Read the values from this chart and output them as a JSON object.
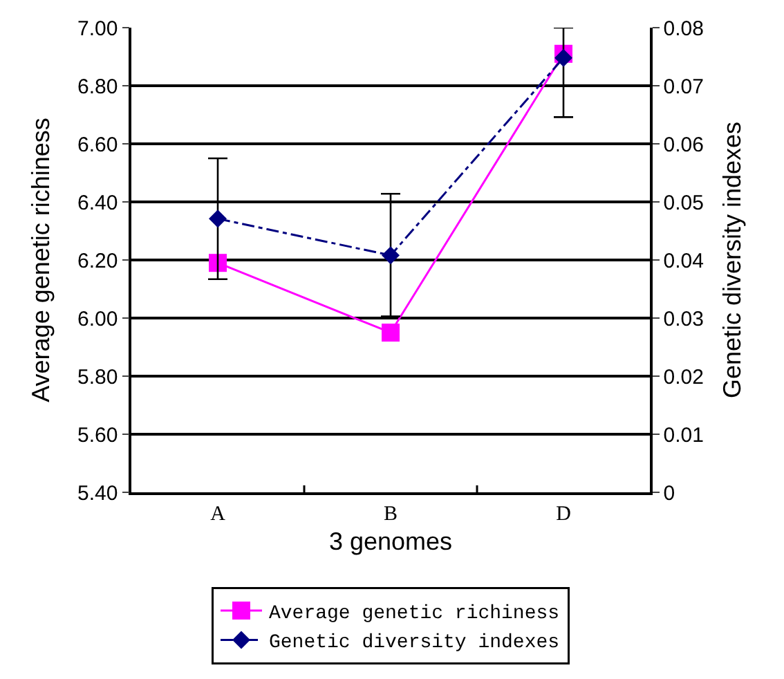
{
  "chart_data": {
    "type": "line",
    "xlabel": "3 genomes",
    "ylabel": "Average genetic richiness",
    "y2label": "Genetic diversity indexes",
    "categories": [
      "A",
      "B",
      "D"
    ],
    "series": [
      {
        "name": "Average genetic richiness",
        "color": "#ff00ff",
        "values": [
          6.19,
          5.95,
          6.91
        ],
        "marker": "square",
        "line_style": "solid"
      },
      {
        "name": "Genetic diversity indexes",
        "color": "#000080",
        "values": [
          0.0471,
          0.0408,
          0.0748
        ],
        "axis": "y2",
        "marker": "diamond",
        "line_style": "dashed",
        "errors": [
          [
            0.0367,
            0.0575
          ],
          [
            0.0303,
            0.0514
          ],
          [
            0.0646,
            0.08
          ]
        ]
      }
    ],
    "ylim": [
      5.4,
      7.0
    ],
    "yticks": [
      {
        "value": 5.4,
        "label": "5.40"
      },
      {
        "value": 5.6,
        "label": "5.60"
      },
      {
        "value": 5.8,
        "label": "5.80"
      },
      {
        "value": 6.0,
        "label": "6.00"
      },
      {
        "value": 6.2,
        "label": "6.20"
      },
      {
        "value": 6.4,
        "label": "6.40"
      },
      {
        "value": 6.6,
        "label": "6.60"
      },
      {
        "value": 6.8,
        "label": "6.80"
      },
      {
        "value": 7.0,
        "label": "7.00"
      }
    ],
    "y2lim": [
      0,
      0.08
    ],
    "y2ticks": [
      0,
      0.01,
      0.02,
      0.03,
      0.04,
      0.05,
      0.06,
      0.07,
      0.08
    ],
    "grid": "y",
    "legend": "bottom"
  }
}
